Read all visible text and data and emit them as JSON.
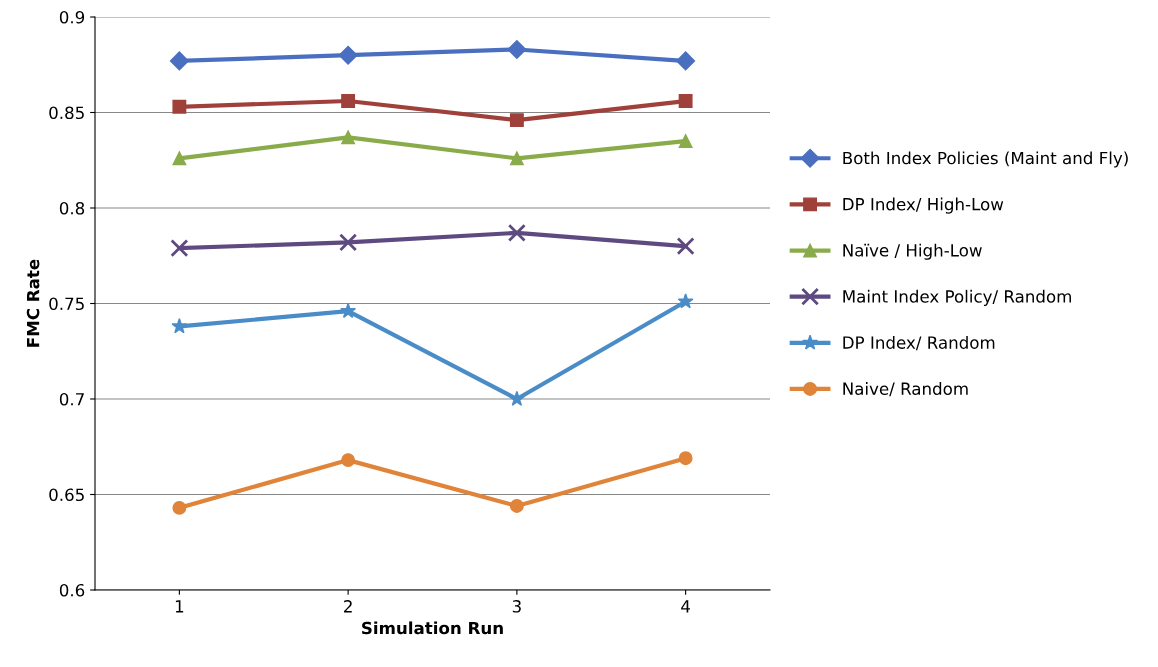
{
  "chart_data": {
    "type": "line",
    "xlabel": "Simulation Run",
    "ylabel": "FMC Rate",
    "categories": [
      "1",
      "2",
      "3",
      "4"
    ],
    "series": [
      {
        "name": "Both Index Policies (Maint and Fly)",
        "color": "#4a6fc0",
        "marker": "diamond",
        "values": [
          0.877,
          0.88,
          0.883,
          0.877
        ]
      },
      {
        "name": "DP Index/ High-Low",
        "color": "#a0403a",
        "marker": "square",
        "values": [
          0.853,
          0.856,
          0.846,
          0.856
        ]
      },
      {
        "name": "Naïve / High-Low",
        "color": "#8aab4a",
        "marker": "triangle",
        "values": [
          0.826,
          0.837,
          0.826,
          0.835
        ]
      },
      {
        "name": "Maint Index Policy/ Random",
        "color": "#5e4a80",
        "marker": "cross",
        "values": [
          0.779,
          0.782,
          0.787,
          0.78
        ]
      },
      {
        "name": "DP Index/ Random",
        "color": "#4a8cc8",
        "marker": "star",
        "values": [
          0.738,
          0.746,
          0.7,
          0.751
        ]
      },
      {
        "name": "Naive/ Random",
        "color": "#e0843a",
        "marker": "circle",
        "values": [
          0.643,
          0.668,
          0.644,
          0.669
        ]
      }
    ],
    "ylim": [
      0.6,
      0.9
    ],
    "yticks": [
      0.6,
      0.65,
      0.7,
      0.75,
      0.8,
      0.85,
      0.9
    ],
    "grid": "y",
    "legend": "right"
  }
}
